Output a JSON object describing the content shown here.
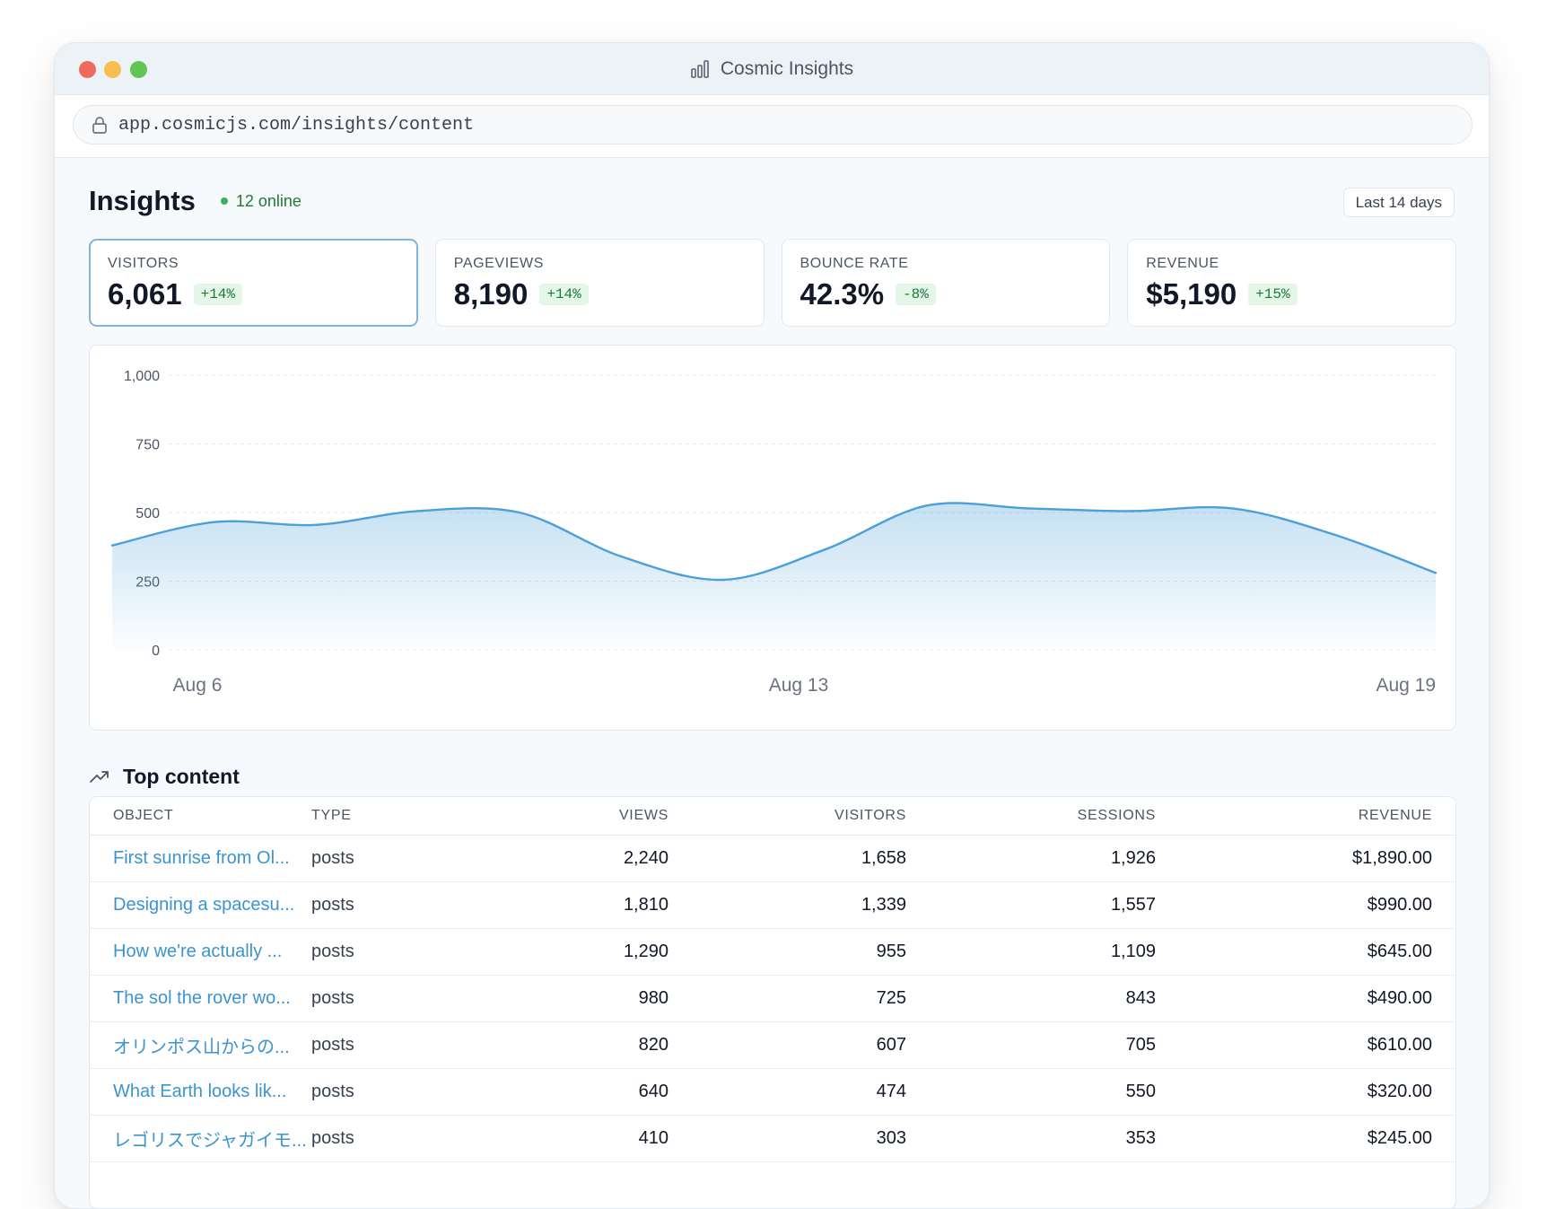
{
  "window": {
    "title": "Cosmic Insights",
    "url": "app.cosmicjs.com/insights/content"
  },
  "header": {
    "title": "Insights",
    "online": "12 online",
    "range": "Last 14 days"
  },
  "stats": [
    {
      "label": "VISITORS",
      "value": "6,061",
      "change": "+14%"
    },
    {
      "label": "PAGEVIEWS",
      "value": "8,190",
      "change": "+14%"
    },
    {
      "label": "BOUNCE RATE",
      "value": "42.3%",
      "change": "-8%"
    },
    {
      "label": "REVENUE",
      "value": "$5,190",
      "change": "+15%"
    }
  ],
  "colors": {
    "accent": "#3b94cf",
    "line": "#4aa0d8",
    "positive": "#1f7a3a",
    "positive_bg": "#e3f6e7"
  },
  "chart_data": {
    "type": "area",
    "x": [
      "Aug 6",
      "Aug 7",
      "Aug 8",
      "Aug 9",
      "Aug 10",
      "Aug 11",
      "Aug 12",
      "Aug 13",
      "Aug 14",
      "Aug 15",
      "Aug 16",
      "Aug 17",
      "Aug 18",
      "Aug 19"
    ],
    "values": [
      380,
      465,
      455,
      505,
      500,
      340,
      255,
      365,
      525,
      515,
      505,
      515,
      420,
      280
    ],
    "y_ticks": [
      "1,000",
      "750",
      "500",
      "250",
      "0"
    ],
    "x_tick_labels": [
      "Aug 6",
      "Aug 13",
      "Aug 19"
    ],
    "ylim": [
      0,
      1000
    ],
    "grid": true
  },
  "top_content": {
    "title": "Top content",
    "columns": [
      "OBJECT",
      "TYPE",
      "VIEWS",
      "VISITORS",
      "SESSIONS",
      "REVENUE"
    ],
    "rows": [
      {
        "object": "First sunrise from Ol...",
        "type": "posts",
        "views": "2,240",
        "visitors": "1,658",
        "sessions": "1,926",
        "revenue": "$1,890.00"
      },
      {
        "object": "Designing a spacesu...",
        "type": "posts",
        "views": "1,810",
        "visitors": "1,339",
        "sessions": "1,557",
        "revenue": "$990.00"
      },
      {
        "object": "How we're actually ...",
        "type": "posts",
        "views": "1,290",
        "visitors": "955",
        "sessions": "1,109",
        "revenue": "$645.00"
      },
      {
        "object": "The sol the rover wo...",
        "type": "posts",
        "views": "980",
        "visitors": "725",
        "sessions": "843",
        "revenue": "$490.00"
      },
      {
        "object": "オリンポス山からの...",
        "type": "posts",
        "views": "820",
        "visitors": "607",
        "sessions": "705",
        "revenue": "$610.00"
      },
      {
        "object": "What Earth looks lik...",
        "type": "posts",
        "views": "640",
        "visitors": "474",
        "sessions": "550",
        "revenue": "$320.00"
      },
      {
        "object": "レゴリスでジャガイモ...",
        "type": "posts",
        "views": "410",
        "visitors": "303",
        "sessions": "353",
        "revenue": "$245.00"
      }
    ]
  },
  "icons": {
    "title_icon": "bar-chart-icon",
    "url_icon": "lock-icon",
    "section_icon": "trending-up-icon"
  }
}
